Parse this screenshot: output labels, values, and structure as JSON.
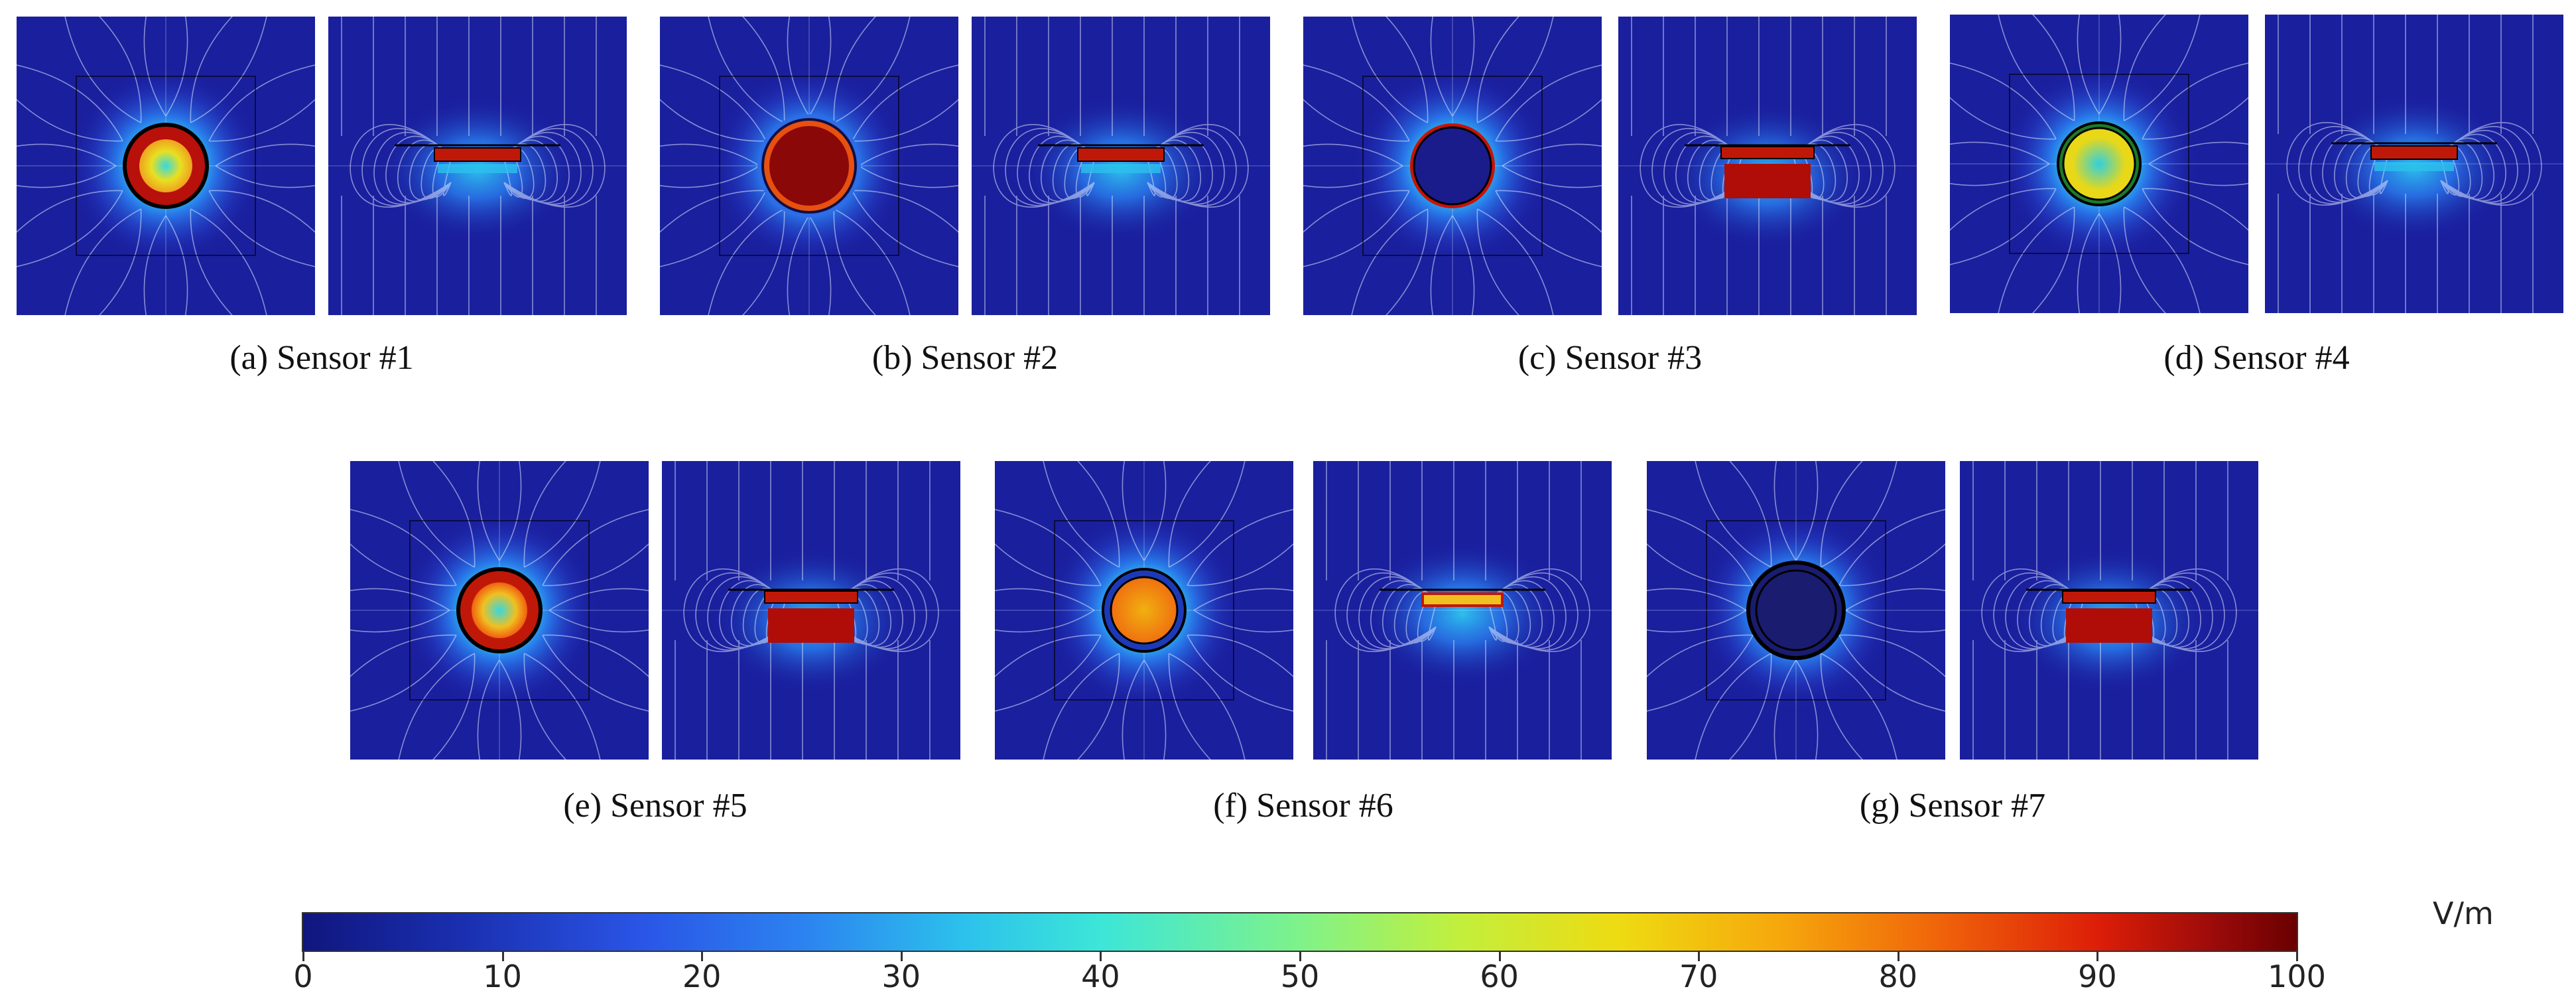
{
  "sensors": [
    {
      "caption": "(a) Sensor #1",
      "top_view": "top-view-field-map",
      "side_view": "cross-section-field-map"
    },
    {
      "caption": "(b) Sensor #2",
      "top_view": "top-view-field-map",
      "side_view": "cross-section-field-map"
    },
    {
      "caption": "(c) Sensor #3",
      "top_view": "top-view-field-map",
      "side_view": "cross-section-field-map"
    },
    {
      "caption": "(d) Sensor #4",
      "top_view": "top-view-field-map",
      "side_view": "cross-section-field-map"
    },
    {
      "caption": "(e) Sensor #5",
      "top_view": "top-view-field-map",
      "side_view": "cross-section-field-map"
    },
    {
      "caption": "(f) Sensor #6",
      "top_view": "top-view-field-map",
      "side_view": "cross-section-field-map"
    },
    {
      "caption": "(g) Sensor #7",
      "top_view": "top-view-field-map",
      "side_view": "cross-section-field-map"
    }
  ],
  "colorbar": {
    "unit": "V/m",
    "min": 0,
    "max": 100,
    "ticks": [
      "0",
      "10",
      "20",
      "30",
      "40",
      "50",
      "60",
      "70",
      "80",
      "90",
      "100"
    ],
    "colors": {
      "low": "#10167e",
      "mid_low": "#2cc0ec",
      "mid": "#7ff28a",
      "mid_high": "#eedb12",
      "high": "#dd1e08",
      "max": "#6a0000"
    }
  }
}
